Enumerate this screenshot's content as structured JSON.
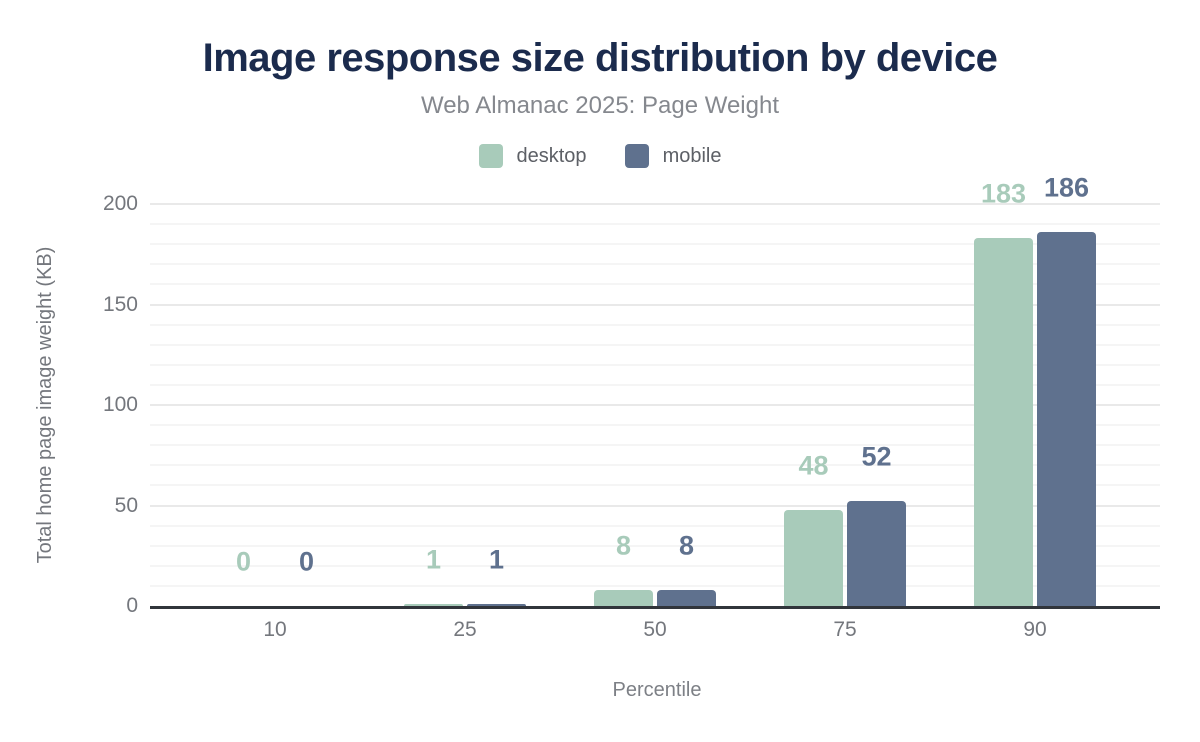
{
  "header": {
    "title": "Image response size distribution by device",
    "subtitle": "Web Almanac 2025: Page Weight"
  },
  "legend": {
    "items": [
      {
        "label": "desktop",
        "color": "#a8cbba"
      },
      {
        "label": "mobile",
        "color": "#5f718e"
      }
    ]
  },
  "chart_data": {
    "type": "bar",
    "title": "Image response size distribution by device",
    "subtitle": "Web Almanac 2025: Page Weight",
    "categories": [
      "10",
      "25",
      "50",
      "75",
      "90"
    ],
    "series": [
      {
        "name": "desktop",
        "color": "#a8cbba",
        "values": [
          0,
          1,
          8,
          48,
          183
        ]
      },
      {
        "name": "mobile",
        "color": "#5f718e",
        "values": [
          0,
          1,
          8,
          52,
          186
        ]
      }
    ],
    "xlabel": "Percentile",
    "ylabel": "Total home page image weight (KB)",
    "ylim": [
      0,
      200
    ],
    "yticks": [
      0,
      50,
      100,
      150,
      200
    ],
    "minor_grid_step": 10,
    "grid": true,
    "legend_position": "top",
    "data_labels": true
  },
  "colors": {
    "title": "#1b2b4d",
    "subtitle": "#85888e",
    "axis_text": "#74777d",
    "axis_line": "#31353b",
    "grid_minor": "#f5f5f5",
    "grid_major": "#e9e9e9",
    "background": "#ffffff"
  }
}
